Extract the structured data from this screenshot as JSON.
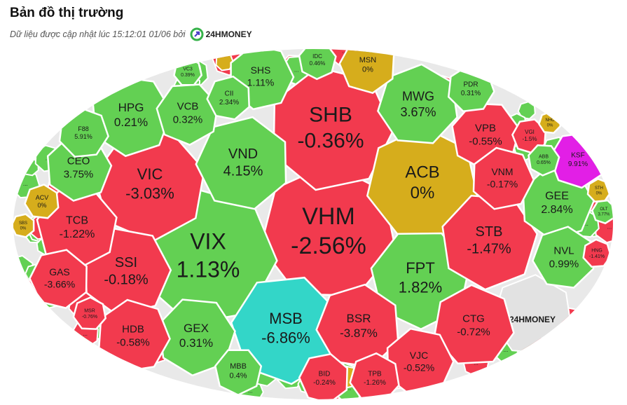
{
  "header": {
    "title": "Bản đồ thị trường",
    "subtitle": "Dữ liệu được cập nhật lúc 15:12:01 01/06 bởi",
    "brand": "24HMONEY"
  },
  "ellipsis": "...",
  "cells": [
    {
      "ticker": "SHS",
      "change": "1.11%"
    },
    {
      "ticker": "IDC",
      "change": "0.46%"
    },
    {
      "ticker": "MSN",
      "change": "0%"
    },
    {
      "ticker": "MWG",
      "change": "3.67%"
    },
    {
      "ticker": "PDR",
      "change": "0.31%"
    },
    {
      "ticker": "HPG",
      "change": "0.21%"
    },
    {
      "ticker": "VCB",
      "change": "0.32%"
    },
    {
      "ticker": "CII",
      "change": "2.34%"
    },
    {
      "ticker": "VC3",
      "change": "0.39%"
    },
    {
      "ticker": "SHB",
      "change": "-0.36%"
    },
    {
      "ticker": "VPB",
      "change": "-0.55%"
    },
    {
      "ticker": "VGI",
      "change": "-1.5%"
    },
    {
      "ticker": "NHC",
      "change": "0%"
    },
    {
      "ticker": "F88",
      "change": "5.91%"
    },
    {
      "ticker": "CEO",
      "change": "3.75%"
    },
    {
      "ticker": "VIC",
      "change": "-3.03%"
    },
    {
      "ticker": "VND",
      "change": "4.15%"
    },
    {
      "ticker": "ACB",
      "change": "0%"
    },
    {
      "ticker": "VNM",
      "change": "-0.17%"
    },
    {
      "ticker": "ABB",
      "change": "0.65%"
    },
    {
      "ticker": "KSF",
      "change": "9.91%"
    },
    {
      "ticker": "ACV",
      "change": "0%"
    },
    {
      "ticker": "STH",
      "change": "0%"
    },
    {
      "ticker": "GEE",
      "change": "2.84%"
    },
    {
      "ticker": "TCB",
      "change": "-1.22%"
    },
    {
      "ticker": "SBS",
      "change": "0%"
    },
    {
      "ticker": "VHM",
      "change": "-2.56%"
    },
    {
      "ticker": "VIX",
      "change": "1.13%"
    },
    {
      "ticker": "STB",
      "change": "-1.47%"
    },
    {
      "ticker": "OLT",
      "change": "3.77%"
    },
    {
      "ticker": "NVL",
      "change": "0.99%"
    },
    {
      "ticker": "HNG",
      "change": "-1.41%"
    },
    {
      "ticker": "SSI",
      "change": "-0.18%"
    },
    {
      "ticker": "FPT",
      "change": "1.82%"
    },
    {
      "ticker": "GAS",
      "change": "-3.66%"
    },
    {
      "ticker": "MSR",
      "change": "-0.76%"
    },
    {
      "ticker": "HDB",
      "change": "-0.58%"
    },
    {
      "ticker": "GEX",
      "change": "0.31%"
    },
    {
      "ticker": "MSB",
      "change": "-6.86%"
    },
    {
      "ticker": "BSR",
      "change": "-3.87%"
    },
    {
      "ticker": "CTG",
      "change": "-0.72%"
    },
    {
      "ticker": "VJC",
      "change": "-0.52%"
    },
    {
      "ticker": "MBB",
      "change": "0.4%"
    },
    {
      "ticker": "BID",
      "change": "-0.24%"
    },
    {
      "ticker": "TPB",
      "change": "-1.26%"
    }
  ]
}
